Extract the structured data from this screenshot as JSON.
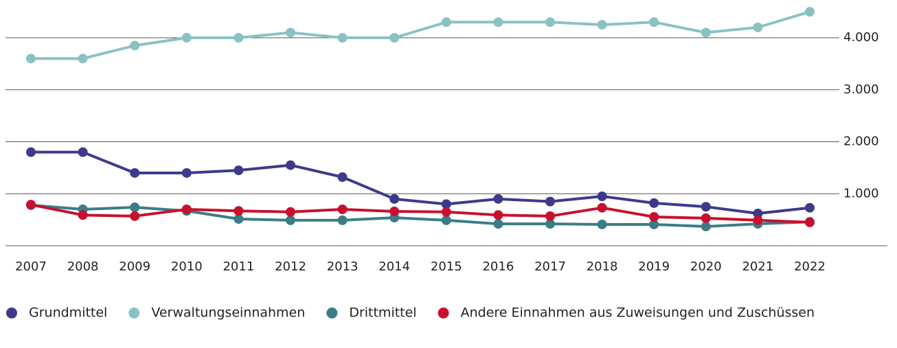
{
  "chart_data": {
    "type": "line",
    "x": [
      "2007",
      "2008",
      "2009",
      "2010",
      "2011",
      "2012",
      "2013",
      "2014",
      "2015",
      "2016",
      "2017",
      "2018",
      "2019",
      "2020",
      "2021",
      "2022"
    ],
    "series": [
      {
        "name": "Grundmittel",
        "color": "#3d3a8c",
        "values": [
          1800,
          1800,
          1400,
          1400,
          1450,
          1550,
          1320,
          900,
          800,
          900,
          850,
          950,
          820,
          750,
          620,
          730
        ]
      },
      {
        "name": "Verwaltungseinnahmen",
        "color": "#8ac2c4",
        "values": [
          3600,
          3600,
          3850,
          4000,
          4000,
          4100,
          4000,
          4000,
          4300,
          4300,
          4300,
          4250,
          4300,
          4100,
          4200,
          4500
        ]
      },
      {
        "name": "Drittmittel",
        "color": "#3a7d86",
        "values": [
          780,
          700,
          740,
          670,
          515,
          490,
          490,
          540,
          490,
          420,
          420,
          410,
          410,
          370,
          420,
          460
        ]
      },
      {
        "name": "Andere Einnahmen aus Zuweisungen und Zuschüssen",
        "color": "#c8102e",
        "values": [
          790,
          590,
          570,
          700,
          670,
          650,
          700,
          660,
          650,
          590,
          570,
          730,
          555,
          530,
          490,
          450
        ]
      }
    ],
    "ylim": [
      0,
      4700
    ],
    "yticks": [
      {
        "value": 1000,
        "label": "1.000"
      },
      {
        "value": 2000,
        "label": "2.000"
      },
      {
        "value": 3000,
        "label": "3.000"
      },
      {
        "value": 4000,
        "label": "4.000"
      }
    ],
    "grid": true
  }
}
